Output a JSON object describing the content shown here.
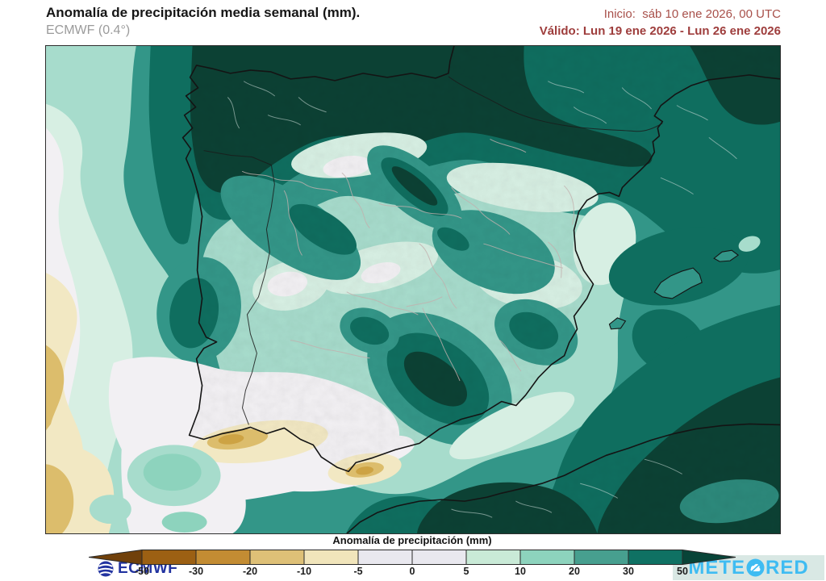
{
  "header": {
    "title": "Anomalía de precipitación media semanal (mm).",
    "subtitle": "ECMWF (0.4°)",
    "init_line": "Inicio:  sáb 10 ene 2026, 00 UTC",
    "valid_line": "Válido: Lun 19 ene 2026 - Lun 26 ene 2026",
    "init_color": "#a8504a",
    "valid_color": "#9e3d3c"
  },
  "map": {
    "ecmwf_logo": "ECMWF",
    "ecmwf_blue": "#2233a0",
    "meteored_pre": "METE",
    "meteored_post": "RED",
    "meteored_color": "#3fbcf2"
  },
  "legend": {
    "label": "Anomalía de precipitación (mm)",
    "ticks": [
      "-50",
      "-30",
      "-20",
      "-10",
      "-5",
      "0",
      "5",
      "10",
      "20",
      "30",
      "50"
    ],
    "segment_colors": [
      "#9c6013",
      "#c38c33",
      "#dec077",
      "#f1e5bb",
      "#e9e8ef",
      "#e9e8ef",
      "#c9ead7",
      "#8dd3bd",
      "#479f8f",
      "#0f7163"
    ],
    "arrow_left_color": "#70400a",
    "arrow_right_color": "#084438"
  },
  "palette": {
    "base": "#339688",
    "dark": "#0f6e5f",
    "vdark": "#0c4134",
    "light": "#a7dccc",
    "vlight": "#d7efe3",
    "white": "#f2f0f3",
    "cream": "#f2e8c3",
    "tan": "#dcbd6c",
    "dtan": "#cda344",
    "medlight": "#8dd3bd",
    "coast": "#141414",
    "border_gray": "#c2b0ae",
    "border_light": "#cfdeda"
  },
  "chart_data": {
    "type": "heatmap",
    "title": "Anomalía de precipitación media semanal (mm)",
    "model": "ECMWF (0.4°)",
    "init": "sáb 10 ene 2026, 00 UTC",
    "valid": "Lun 19 ene 2026 - Lun 26 ene 2026",
    "units": "mm",
    "region_shown": "Península Ibérica, Baleares, sur de Francia y norte de África",
    "scale_breaks_mm": [
      -50,
      -30,
      -20,
      -10,
      -5,
      0,
      5,
      10,
      20,
      30,
      50
    ],
    "regions": [
      {
        "area": "Galicia y costa cantábrica",
        "anomaly_mm": "> 50"
      },
      {
        "area": "Pirineos y golfo de Vizcaya",
        "anomaly_mm": "> 50"
      },
      {
        "area": "Sureste peninsular (Sierra Nevada - Granada)",
        "anomaly_mm": "30 a > 50"
      },
      {
        "area": "Interior peninsular",
        "anomaly_mm": "10 a 20"
      },
      {
        "area": "Meseta norte y La Mancha",
        "anomaly_mm": "5 a 10"
      },
      {
        "area": "Golfo de Cádiz y litoral Huelva-Cádiz",
        "anomaly_mm": "-10 a -20"
      },
      {
        "area": "Costa de Málaga",
        "anomaly_mm": "-10 a -20"
      },
      {
        "area": "Atlántico al oeste de Portugal",
        "anomaly_mm": "-5 a -20"
      },
      {
        "area": "Norte de Marruecos y mar de Alborán",
        "anomaly_mm": "30 a > 50"
      },
      {
        "area": "Mediterráneo balear",
        "anomaly_mm": "20 a 50"
      }
    ]
  }
}
